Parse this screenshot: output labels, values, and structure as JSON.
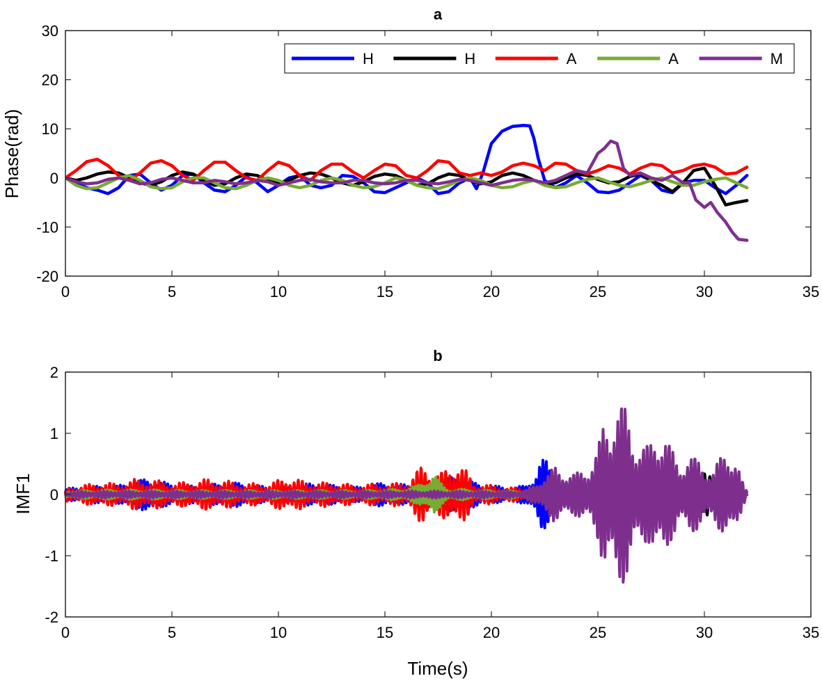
{
  "chart_data": [
    {
      "type": "line",
      "title": "a",
      "xlabel": "",
      "ylabel": "Phase(rad)",
      "xlim": [
        0,
        35
      ],
      "ylim": [
        -20,
        30
      ],
      "xticks": [
        0,
        5,
        10,
        15,
        20,
        25,
        30,
        35
      ],
      "yticks": [
        -20,
        -10,
        0,
        10,
        20,
        30
      ],
      "grid": false,
      "legend": {
        "placement": "top-right",
        "orientation": "horizontal"
      },
      "series": [
        {
          "name": "H",
          "color": "#0000ff",
          "x": [
            0,
            0.5,
            1,
            1.5,
            2,
            2.5,
            3,
            3.5,
            4,
            4.5,
            5,
            5.5,
            6,
            6.5,
            7,
            7.5,
            8,
            8.5,
            9,
            9.5,
            10,
            10.5,
            11,
            11.5,
            12,
            12.5,
            13,
            13.5,
            14,
            14.5,
            15,
            15.5,
            16,
            16.5,
            17,
            17.5,
            18,
            18.5,
            19,
            19.3,
            19.6,
            20,
            20.5,
            21,
            21.5,
            21.8,
            22,
            22.2,
            22.5,
            23,
            23.5,
            24,
            24.5,
            25,
            25.5,
            26,
            26.5,
            27,
            27.5,
            28,
            28.5,
            29,
            29.5,
            30,
            30.5,
            31,
            31.5,
            32
          ],
          "y": [
            0,
            -1,
            -2,
            -2.5,
            -3.2,
            -2,
            0.5,
            0.8,
            -1,
            -2.5,
            -1.5,
            0.5,
            0.8,
            -1,
            -2.5,
            -2.8,
            -1.5,
            0.3,
            -1,
            -2.8,
            -1.5,
            0,
            0.5,
            -1.5,
            -2,
            -1.5,
            0.5,
            0.3,
            -1,
            -2.8,
            -3,
            -2,
            -1,
            0,
            -1,
            -3.2,
            -2.8,
            -1,
            0,
            -2.2,
            1,
            7,
            9.5,
            10.5,
            10.7,
            10.6,
            8,
            4,
            -0.5,
            -2,
            -1,
            0.5,
            -1,
            -2.8,
            -3,
            -2.5,
            -1,
            0.5,
            -0.5,
            -2.5,
            -3,
            -1,
            -0.5,
            -0.5,
            -2,
            -3.2,
            -1.5,
            0.5
          ]
        },
        {
          "name": "H",
          "color": "#000000",
          "x": [
            0,
            0.5,
            1,
            1.5,
            2,
            2.5,
            3,
            3.5,
            4,
            4.5,
            5,
            5.5,
            6,
            6.5,
            7,
            7.5,
            8,
            8.5,
            9,
            9.5,
            10,
            10.5,
            11,
            11.5,
            12,
            12.5,
            13,
            13.5,
            14,
            14.5,
            15,
            15.5,
            16,
            16.5,
            17,
            17.5,
            18,
            18.5,
            19,
            19.5,
            20,
            20.5,
            21,
            21.5,
            22,
            22.5,
            23,
            23.5,
            24,
            24.5,
            25,
            25.5,
            26,
            26.5,
            27,
            27.5,
            28,
            28.5,
            29,
            29.5,
            30,
            30.5,
            31,
            31.5,
            32
          ],
          "y": [
            0,
            -0.5,
            0,
            0.8,
            1.2,
            1,
            0,
            -1,
            -1.5,
            -0.8,
            0.5,
            1.2,
            0.8,
            -0.5,
            -1.5,
            -1.2,
            0,
            0.8,
            0.5,
            -0.5,
            -1.2,
            -0.5,
            0.5,
            1,
            0.8,
            0,
            -1,
            -1.5,
            -0.8,
            0.3,
            0.8,
            0.5,
            -0.5,
            -1.5,
            -1.2,
            0,
            0.8,
            0.5,
            -0.5,
            -1.2,
            -0.8,
            0.5,
            1,
            0.5,
            -0.5,
            -1.2,
            -1,
            0,
            0.8,
            0.5,
            -0.3,
            -1,
            -0.8,
            0.3,
            0.8,
            -0.5,
            -1.5,
            -2.8,
            -1,
            1.5,
            2,
            -1.5,
            -5.5,
            -5,
            -4.6
          ]
        },
        {
          "name": "A",
          "color": "#ff0000",
          "x": [
            0,
            0.5,
            1,
            1.5,
            2,
            2.5,
            3,
            3.5,
            4,
            4.5,
            5,
            5.5,
            6,
            6.5,
            7,
            7.5,
            8,
            8.5,
            9,
            9.5,
            10,
            10.5,
            11,
            11.5,
            12,
            12.5,
            13,
            13.5,
            14,
            14.5,
            15,
            15.5,
            16,
            16.5,
            17,
            17.5,
            18,
            18.5,
            19,
            19.5,
            20,
            20.5,
            21,
            21.5,
            22,
            22.5,
            23,
            23.5,
            24,
            24.5,
            25,
            25.5,
            26,
            26.5,
            27,
            27.5,
            28,
            28.5,
            29,
            29.5,
            30,
            30.5,
            31,
            31.5,
            32
          ],
          "y": [
            0,
            1.5,
            3.3,
            3.8,
            2.5,
            0.5,
            -0.5,
            1,
            3,
            3.5,
            2.5,
            0.5,
            -0.5,
            1.5,
            3.2,
            3.2,
            1.5,
            0,
            -0.5,
            1.5,
            3.2,
            2.5,
            0.5,
            -0.5,
            1.5,
            2.8,
            2.8,
            1.2,
            0,
            1.5,
            2.8,
            2.5,
            0.5,
            0,
            1.5,
            3.5,
            3.2,
            1,
            0.5,
            1,
            0.5,
            1.2,
            2.5,
            3,
            2.5,
            1.5,
            3,
            2.8,
            1.5,
            0.8,
            1.5,
            2.5,
            2,
            0.8,
            2,
            2.8,
            2.5,
            1,
            1.5,
            2.5,
            2.8,
            2.2,
            0.8,
            1,
            2.2
          ]
        },
        {
          "name": "A",
          "color": "#77ac30",
          "x": [
            0,
            0.5,
            1,
            1.5,
            2,
            2.5,
            3,
            3.5,
            4,
            4.5,
            5,
            5.5,
            6,
            6.5,
            7,
            7.5,
            8,
            8.5,
            9,
            9.5,
            10,
            10.5,
            11,
            11.5,
            12,
            12.5,
            13,
            13.5,
            14,
            14.5,
            15,
            15.5,
            16,
            16.5,
            17,
            17.5,
            18,
            18.5,
            19,
            19.5,
            20,
            20.5,
            21,
            21.5,
            22,
            22.5,
            23,
            23.5,
            24,
            24.5,
            25,
            25.5,
            26,
            26.5,
            27,
            27.5,
            28,
            28.5,
            29,
            29.5,
            30,
            30.5,
            31,
            31.5,
            32
          ],
          "y": [
            0,
            -1.5,
            -2.2,
            -2,
            -1,
            0,
            0.5,
            -0.5,
            -1.8,
            -2.2,
            -2,
            -0.8,
            0,
            0,
            -1,
            -2,
            -2.2,
            -1.5,
            -0.5,
            0,
            -0.5,
            -1.5,
            -2,
            -1.5,
            -0.5,
            0,
            -0.5,
            -1.5,
            -2,
            -1.8,
            -1,
            0,
            -0.5,
            -1.5,
            -2,
            -2.2,
            -1.5,
            -0.5,
            0,
            -0.5,
            -1.5,
            -2,
            -1.8,
            -1,
            -0.5,
            -1.5,
            -2,
            -1.8,
            -1,
            -0.3,
            0,
            -0.8,
            -1.5,
            -1.8,
            -1.2,
            -0.5,
            0,
            -0.8,
            -1.5,
            -1.5,
            -0.8,
            -0.3,
            0,
            -1,
            -2
          ]
        },
        {
          "name": "M",
          "color": "#7e2f8e",
          "x": [
            0,
            0.5,
            1,
            1.5,
            2,
            2.5,
            3,
            3.5,
            4,
            4.5,
            5,
            5.5,
            6,
            6.5,
            7,
            7.5,
            8,
            8.5,
            9,
            9.5,
            10,
            10.5,
            11,
            11.5,
            12,
            12.5,
            13,
            13.5,
            14,
            14.5,
            15,
            15.5,
            16,
            16.5,
            17,
            17.5,
            18,
            18.5,
            19,
            19.5,
            20,
            20.5,
            21,
            21.5,
            22,
            22.5,
            23,
            23.5,
            24,
            24.5,
            25,
            25.3,
            25.6,
            25.9,
            26.2,
            26.5,
            27,
            27.5,
            28,
            28.5,
            29,
            29.3,
            29.6,
            30,
            30.3,
            30.6,
            31,
            31.3,
            31.6,
            32
          ],
          "y": [
            0,
            -0.8,
            -1.2,
            -1,
            -0.3,
            0,
            -0.5,
            -1.2,
            -1,
            -0.3,
            0,
            -0.5,
            -1,
            -1,
            -0.5,
            -0.8,
            -1.2,
            -1,
            -0.5,
            -0.8,
            -1.5,
            -1,
            -0.5,
            -0.3,
            -0.8,
            -1,
            -1,
            -0.5,
            -0.5,
            -1,
            -1.2,
            -1,
            -0.5,
            -0.5,
            -1,
            -1.2,
            -0.8,
            -0.3,
            -0.5,
            -1,
            -1.5,
            -1,
            -0.5,
            -0.3,
            -0.5,
            -1,
            -0.5,
            0.5,
            1.5,
            1,
            5,
            6,
            7.5,
            7,
            2,
            0.5,
            1,
            0,
            -0.5,
            0.5,
            -1,
            -1,
            -4.5,
            -6,
            -5,
            -7,
            -9,
            -11,
            -12.5,
            -12.7
          ]
        }
      ]
    },
    {
      "type": "line",
      "title": "b",
      "xlabel": "Time(s)",
      "ylabel": "IMF1",
      "xlim": [
        0,
        35
      ],
      "ylim": [
        -2,
        2
      ],
      "xticks": [
        0,
        5,
        10,
        15,
        20,
        25,
        30,
        35
      ],
      "yticks": [
        -2,
        -1,
        0,
        1,
        2
      ],
      "grid": false,
      "series": [
        {
          "name": "",
          "color": "#0000ff",
          "x": [
            0,
            0.8,
            1.6,
            2.4,
            3.2,
            4,
            4.4,
            4.8,
            5.6,
            6.4,
            7.2,
            8,
            8.8,
            9.6,
            10.4,
            11.2,
            12,
            12.8,
            13.6,
            14.4,
            15.2,
            16,
            16.8,
            17.6,
            18.4,
            19.2,
            20,
            20.8,
            21.6,
            22,
            22.3,
            22.6,
            23,
            23.6,
            24.4,
            25.2,
            26,
            26.8,
            27.6,
            28.4,
            29.2,
            30,
            30.8,
            31.6,
            32
          ],
          "amp": [
            0.1,
            0.12,
            0.15,
            0.14,
            0.22,
            0.28,
            0.25,
            0.18,
            0.15,
            0.15,
            0.18,
            0.2,
            0.16,
            0.12,
            0.15,
            0.18,
            0.18,
            0.15,
            0.12,
            0.18,
            0.2,
            0.16,
            0.2,
            0.25,
            0.3,
            0.2,
            0.15,
            0.12,
            0.15,
            0.35,
            0.6,
            0.55,
            0.35,
            0.15,
            0.12,
            0.1,
            0.1,
            0.1,
            0.1,
            0.1,
            0.1,
            0.1,
            0.1,
            0.12,
            0.08
          ]
        },
        {
          "name": "",
          "color": "#000000",
          "x": [
            0,
            2,
            4,
            6,
            8,
            10,
            12,
            14,
            16,
            18,
            20,
            22,
            24,
            26,
            28,
            29,
            29.5,
            30,
            30.5,
            31,
            32
          ],
          "amp": [
            0.05,
            0.06,
            0.06,
            0.06,
            0.06,
            0.06,
            0.06,
            0.06,
            0.07,
            0.08,
            0.06,
            0.06,
            0.06,
            0.08,
            0.1,
            0.25,
            0.3,
            0.35,
            0.3,
            0.12,
            0.05
          ]
        },
        {
          "name": "",
          "color": "#ff0000",
          "x": [
            0,
            0.8,
            1.6,
            2.4,
            3.2,
            4,
            4.8,
            5.6,
            6.4,
            7.2,
            8,
            8.8,
            9.6,
            10.4,
            11.2,
            12,
            12.8,
            13.6,
            14.4,
            15.2,
            16,
            16.4,
            16.8,
            17.2,
            17.6,
            18,
            18.4,
            18.8,
            19.2,
            20,
            20.8,
            21.6,
            22.4,
            23.2,
            24,
            24.8,
            25.6,
            26.4,
            27.2,
            28,
            28.8,
            29.6,
            30.4,
            31.2,
            32
          ],
          "amp": [
            0.12,
            0.15,
            0.2,
            0.18,
            0.25,
            0.25,
            0.2,
            0.2,
            0.25,
            0.25,
            0.2,
            0.18,
            0.18,
            0.3,
            0.22,
            0.2,
            0.2,
            0.15,
            0.18,
            0.18,
            0.2,
            0.35,
            0.5,
            0.4,
            0.35,
            0.45,
            0.55,
            0.4,
            0.2,
            0.15,
            0.12,
            0.1,
            0.1,
            0.08,
            0.08,
            0.06,
            0.06,
            0.05,
            0.05,
            0.05,
            0.05,
            0.05,
            0.05,
            0.05,
            0.04
          ]
        },
        {
          "name": "",
          "color": "#77ac30",
          "x": [
            0,
            2,
            4,
            6,
            8,
            10,
            12,
            14,
            16,
            16.5,
            17,
            17.3,
            17.6,
            18,
            20,
            22,
            24,
            26,
            28,
            30,
            32
          ],
          "amp": [
            0.06,
            0.08,
            0.08,
            0.07,
            0.07,
            0.07,
            0.07,
            0.07,
            0.1,
            0.15,
            0.3,
            0.35,
            0.2,
            0.1,
            0.07,
            0.06,
            0.06,
            0.06,
            0.06,
            0.06,
            0.05
          ]
        },
        {
          "name": "",
          "color": "#7e2f8e",
          "x": [
            0,
            2,
            4,
            6,
            8,
            10,
            12,
            14,
            16,
            18,
            20,
            21.5,
            22,
            22.5,
            23,
            23.5,
            24,
            24.5,
            25,
            25.3,
            25.6,
            25.8,
            26,
            26.3,
            26.6,
            27,
            27.4,
            27.8,
            28.1,
            28.4,
            28.8,
            29.2,
            29.6,
            30,
            30.4,
            30.8,
            31.1,
            31.4,
            31.8,
            32
          ],
          "amp": [
            0.05,
            0.06,
            0.06,
            0.06,
            0.06,
            0.06,
            0.06,
            0.06,
            0.06,
            0.06,
            0.06,
            0.06,
            0.15,
            0.35,
            0.45,
            0.4,
            0.35,
            0.45,
            0.8,
            1.2,
            1.3,
            1.7,
            1.65,
            1.4,
            1.1,
            0.9,
            0.8,
            1.1,
            1.15,
            0.8,
            0.5,
            0.7,
            0.6,
            0.5,
            0.4,
            0.65,
            0.8,
            0.7,
            0.2,
            0.05
          ]
        }
      ]
    }
  ]
}
